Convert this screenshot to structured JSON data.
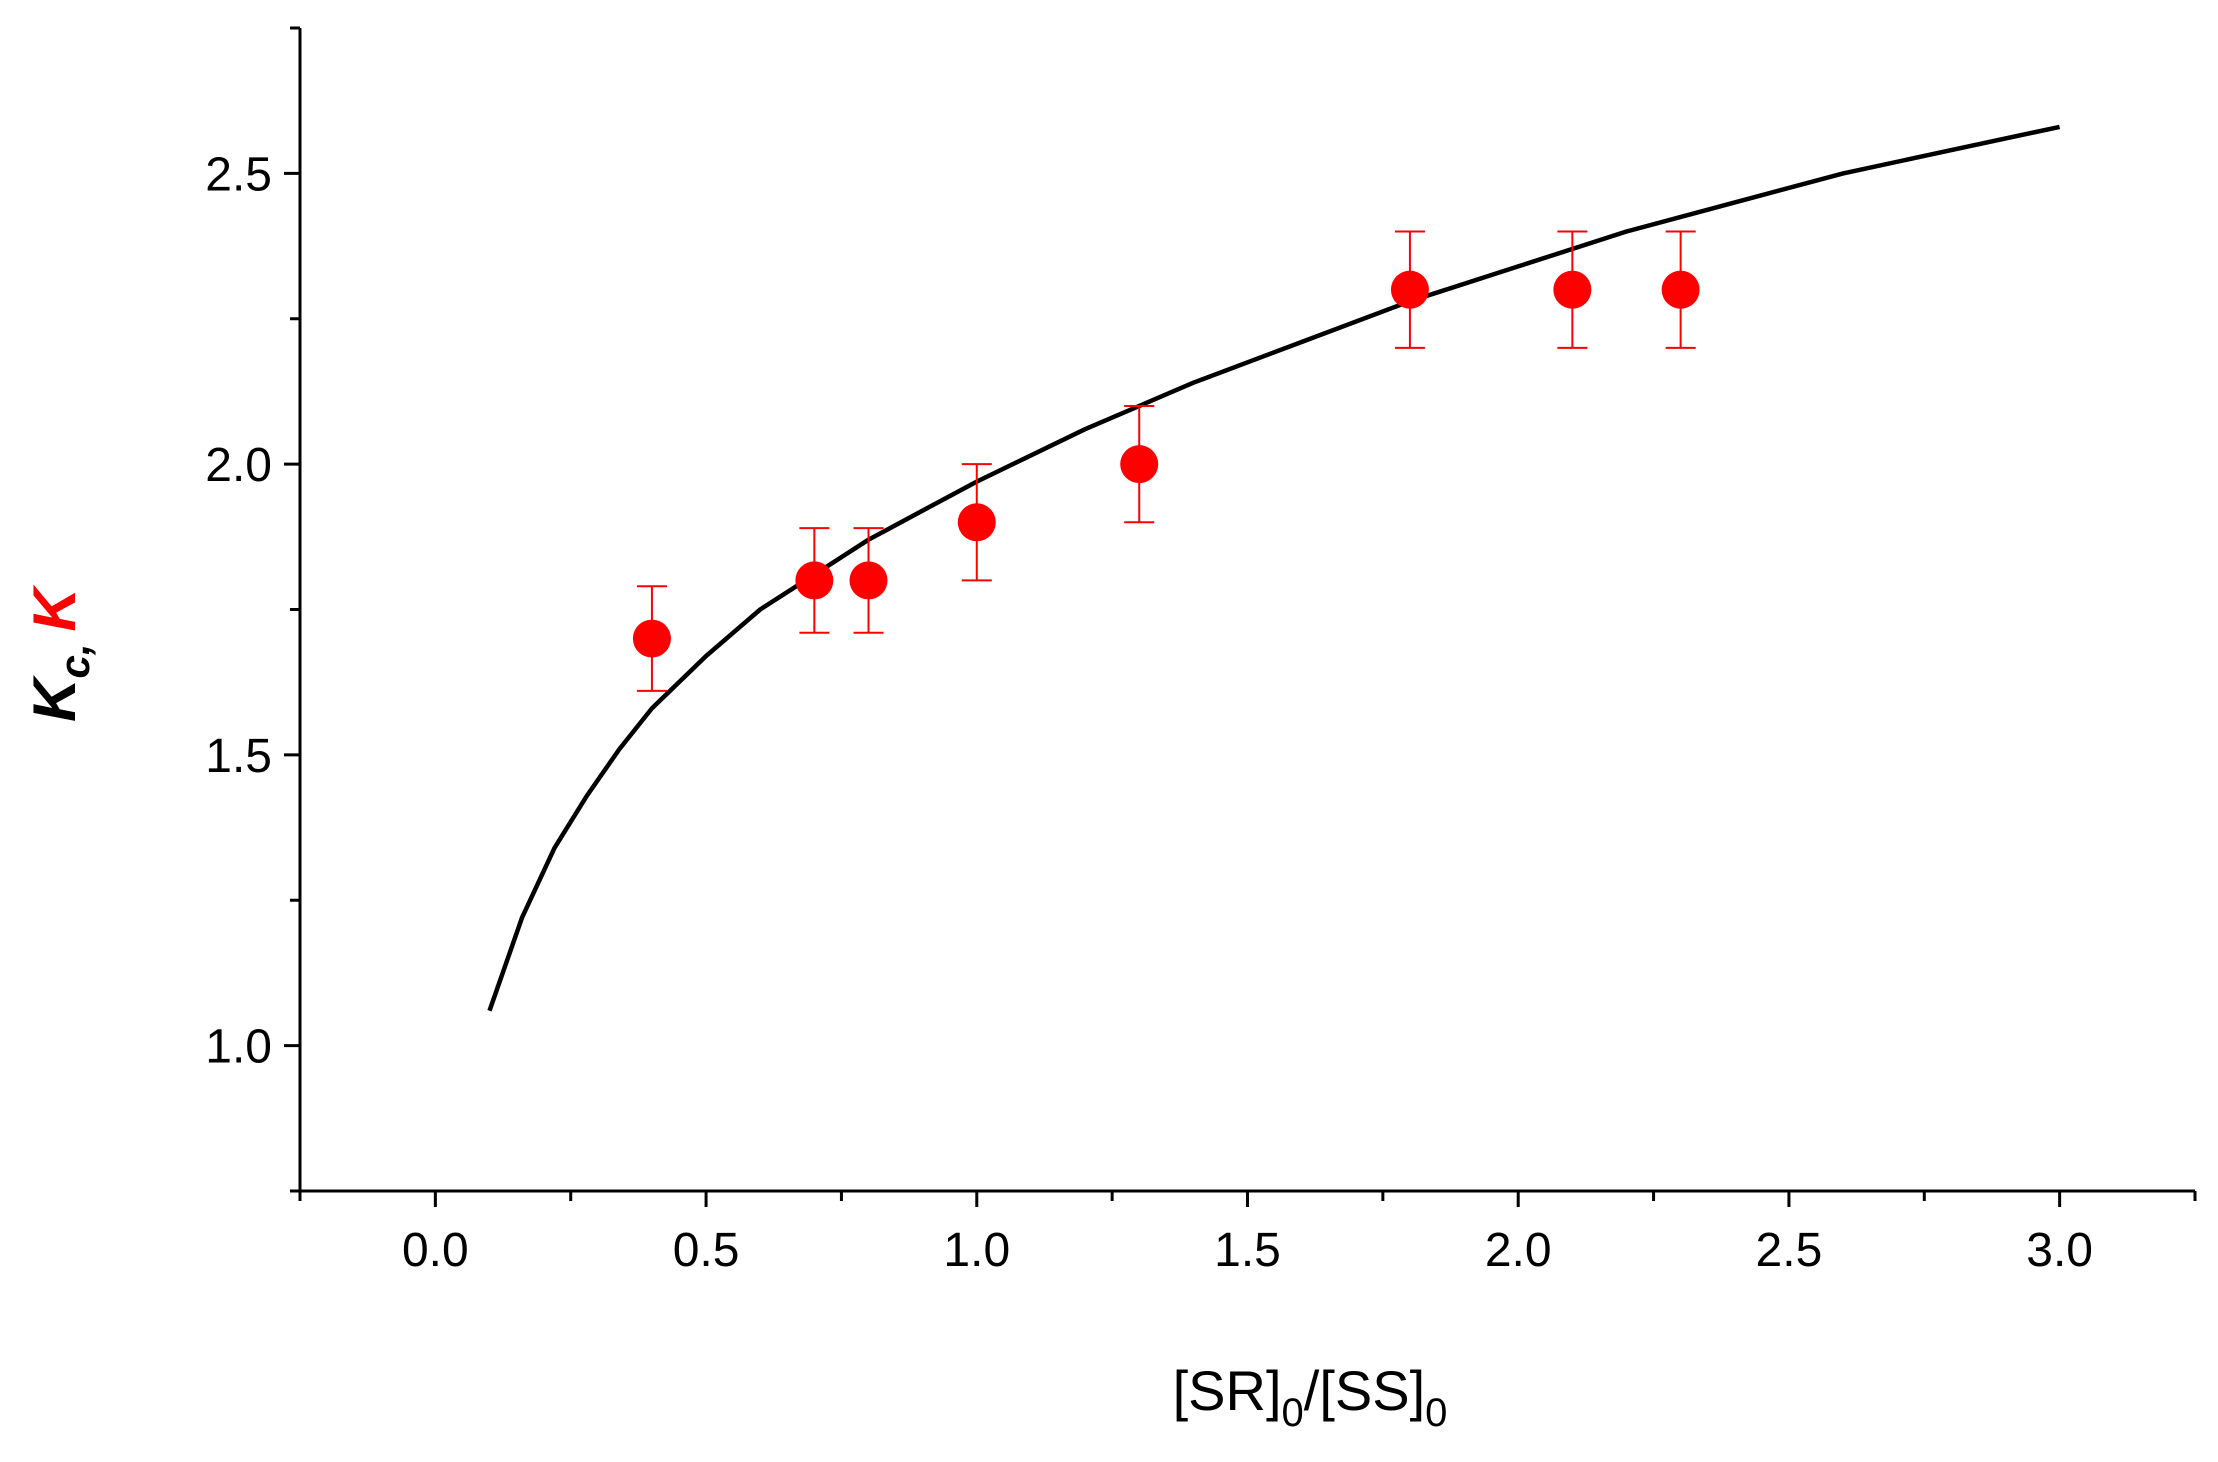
{
  "chart_data": {
    "type": "scatter",
    "title": "",
    "xlabel": {
      "base1": "[SR]",
      "sub1": "0",
      "base2": "/[SS]",
      "sub2": "0"
    },
    "ylabel": {
      "part1": "K",
      "part1_sub": "c",
      "separator": ",",
      "part2": "K",
      "part1_color": "#000000",
      "part2_color": "#ff0000"
    },
    "xlim": [
      -0.25,
      3.25
    ],
    "ylim": [
      0.75,
      2.75
    ],
    "xticks": [
      "0.0",
      "0.5",
      "1.0",
      "1.5",
      "2.0",
      "2.5",
      "3.0"
    ],
    "xtick_values": [
      0.0,
      0.5,
      1.0,
      1.5,
      2.0,
      2.5,
      3.0
    ],
    "yticks": [
      "1.0",
      "1.5",
      "2.0",
      "2.5"
    ],
    "ytick_values": [
      1.0,
      1.5,
      2.0,
      2.5
    ],
    "grid": false,
    "series": [
      {
        "type": "scatter",
        "color": "#ff0000",
        "x": [
          0.4,
          0.7,
          0.8,
          1.0,
          1.3,
          1.8,
          2.1,
          2.3
        ],
        "y": [
          1.7,
          1.8,
          1.8,
          1.9,
          2.0,
          2.3,
          2.3,
          2.3
        ],
        "yerr": [
          0.09,
          0.09,
          0.09,
          0.1,
          0.1,
          0.1,
          0.1,
          0.1
        ]
      },
      {
        "type": "line",
        "color": "#000000",
        "x": [
          0.1,
          0.16,
          0.22,
          0.28,
          0.34,
          0.4,
          0.5,
          0.6,
          0.7,
          0.8,
          0.9,
          1.0,
          1.2,
          1.4,
          1.6,
          1.8,
          2.0,
          2.2,
          2.4,
          2.6,
          2.8,
          3.0
        ],
        "y": [
          1.06,
          1.22,
          1.34,
          1.43,
          1.51,
          1.58,
          1.67,
          1.75,
          1.81,
          1.87,
          1.92,
          1.97,
          2.06,
          2.14,
          2.21,
          2.28,
          2.34,
          2.4,
          2.45,
          2.5,
          2.54,
          2.58
        ]
      }
    ]
  }
}
